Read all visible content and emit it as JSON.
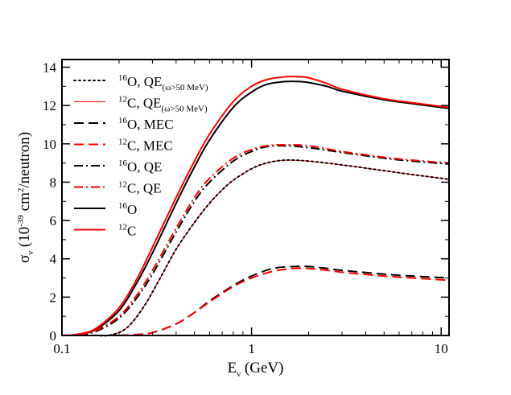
{
  "chart_data": {
    "type": "line",
    "x_scale": "log",
    "xlim": [
      0.1,
      11
    ],
    "ylim": [
      0,
      14.4
    ],
    "x_ticks": [
      0.1,
      1,
      10
    ],
    "x_tick_labels": [
      "0.1",
      "1",
      "10"
    ],
    "y_ticks": [
      0,
      2,
      4,
      6,
      8,
      10,
      12,
      14
    ],
    "y_tick_labels": [
      "0",
      "2",
      "4",
      "6",
      "8",
      "10",
      "12",
      "14"
    ],
    "xlabel": {
      "main": "E",
      "sub": "ν",
      "rest": " (GeV)"
    },
    "ylabel": {
      "main": "σ",
      "sub": "ν",
      "part1": " (10",
      "exp1": "-39",
      "part2": " cm",
      "exp2": "2",
      "part3": "/neutron)"
    },
    "legend_position": "top-left",
    "series": [
      {
        "name": "16O, QE(ω>50 MeV)",
        "legend": {
          "pre": "16",
          "main": "O, QE",
          "sub": "(ω>50 MeV)"
        },
        "color": "#000000",
        "dash": "dot",
        "x": [
          0.15,
          0.18,
          0.22,
          0.27,
          0.33,
          0.4,
          0.5,
          0.6,
          0.7,
          0.8,
          1.0,
          1.2,
          1.5,
          2.0,
          3.0,
          5.0,
          7.0,
          11.0
        ],
        "y": [
          0.0,
          0.02,
          0.4,
          1.5,
          3.0,
          4.5,
          5.9,
          6.9,
          7.6,
          8.1,
          8.7,
          9.0,
          9.15,
          9.1,
          8.9,
          8.6,
          8.4,
          8.15
        ]
      },
      {
        "name": "12C, QE(ω>50 MeV)",
        "legend": {
          "pre": "12",
          "main": "C, QE",
          "sub": "(ω>50 MeV)"
        },
        "color": "#ff0000",
        "dash": "solid-thin",
        "x": [
          0.15,
          0.18,
          0.22,
          0.27,
          0.33,
          0.4,
          0.5,
          0.6,
          0.7,
          0.8,
          1.0,
          1.2,
          1.5,
          2.0,
          3.0,
          5.0,
          7.0,
          11.0
        ],
        "y": [
          0.0,
          0.02,
          0.4,
          1.5,
          3.0,
          4.5,
          5.9,
          6.9,
          7.6,
          8.1,
          8.7,
          9.0,
          9.15,
          9.1,
          8.9,
          8.6,
          8.4,
          8.15
        ]
      },
      {
        "name": "16O, MEC",
        "legend": {
          "pre": "16",
          "main": "O, MEC",
          "sub": ""
        },
        "color": "#000000",
        "dash": "dash",
        "x": [
          0.2,
          0.25,
          0.3,
          0.4,
          0.5,
          0.6,
          0.8,
          1.0,
          1.3,
          1.7,
          2.0,
          2.5,
          3.0,
          5.0,
          7.0,
          11.0
        ],
        "y": [
          0.0,
          0.05,
          0.15,
          0.6,
          1.2,
          1.8,
          2.6,
          3.1,
          3.5,
          3.6,
          3.6,
          3.5,
          3.4,
          3.2,
          3.1,
          3.0
        ]
      },
      {
        "name": "12C, MEC",
        "legend": {
          "pre": "12",
          "main": "C, MEC",
          "sub": ""
        },
        "color": "#ff0000",
        "dash": "dash",
        "x": [
          0.2,
          0.25,
          0.3,
          0.4,
          0.5,
          0.6,
          0.8,
          1.0,
          1.3,
          1.7,
          2.0,
          2.5,
          3.0,
          5.0,
          7.0,
          11.0
        ],
        "y": [
          0.0,
          0.05,
          0.15,
          0.6,
          1.2,
          1.75,
          2.55,
          3.0,
          3.35,
          3.5,
          3.5,
          3.4,
          3.3,
          3.1,
          3.0,
          2.88
        ]
      },
      {
        "name": "16O, QE",
        "legend": {
          "pre": "16",
          "main": "O, QE",
          "sub": ""
        },
        "color": "#000000",
        "dash": "dashdot",
        "x": [
          0.1,
          0.12,
          0.15,
          0.2,
          0.25,
          0.3,
          0.4,
          0.5,
          0.6,
          0.8,
          1.0,
          1.2,
          1.5,
          2.0,
          3.0,
          5.0,
          7.0,
          11.0
        ],
        "y": [
          0.0,
          0.02,
          0.2,
          0.9,
          2.0,
          3.2,
          5.4,
          7.0,
          8.0,
          9.1,
          9.6,
          9.85,
          9.9,
          9.8,
          9.55,
          9.25,
          9.1,
          8.95
        ]
      },
      {
        "name": "12C, QE",
        "legend": {
          "pre": "12",
          "main": "C, QE",
          "sub": ""
        },
        "color": "#ff0000",
        "dash": "dashdot",
        "x": [
          0.1,
          0.12,
          0.15,
          0.2,
          0.25,
          0.3,
          0.4,
          0.5,
          0.6,
          0.8,
          1.0,
          1.2,
          1.5,
          2.0,
          3.0,
          5.0,
          7.0,
          11.0
        ],
        "y": [
          0.0,
          0.03,
          0.25,
          1.0,
          2.15,
          3.4,
          5.6,
          7.2,
          8.2,
          9.25,
          9.7,
          9.9,
          9.95,
          9.9,
          9.6,
          9.3,
          9.15,
          9.0
        ]
      },
      {
        "name": "16O",
        "legend": {
          "pre": "16",
          "main": "O",
          "sub": ""
        },
        "color": "#000000",
        "dash": "solid",
        "x": [
          0.1,
          0.12,
          0.15,
          0.2,
          0.25,
          0.3,
          0.4,
          0.5,
          0.6,
          0.8,
          1.0,
          1.2,
          1.5,
          1.8,
          2.0,
          2.5,
          3.0,
          5.0,
          7.0,
          11.0
        ],
        "y": [
          0.0,
          0.05,
          0.3,
          1.3,
          2.8,
          4.3,
          6.9,
          8.8,
          10.2,
          11.9,
          12.7,
          13.1,
          13.25,
          13.25,
          13.2,
          13.0,
          12.75,
          12.3,
          12.1,
          11.85
        ]
      },
      {
        "name": "12C",
        "legend": {
          "pre": "12",
          "main": "C",
          "sub": ""
        },
        "color": "#ff0000",
        "dash": "solid",
        "x": [
          0.1,
          0.12,
          0.15,
          0.2,
          0.25,
          0.3,
          0.4,
          0.5,
          0.6,
          0.8,
          1.0,
          1.2,
          1.5,
          1.8,
          2.0,
          2.5,
          3.0,
          5.0,
          7.0,
          11.0
        ],
        "y": [
          0.0,
          0.06,
          0.35,
          1.45,
          3.0,
          4.6,
          7.2,
          9.1,
          10.5,
          12.2,
          13.0,
          13.35,
          13.5,
          13.5,
          13.45,
          13.15,
          12.85,
          12.35,
          12.15,
          11.9
        ]
      }
    ]
  }
}
